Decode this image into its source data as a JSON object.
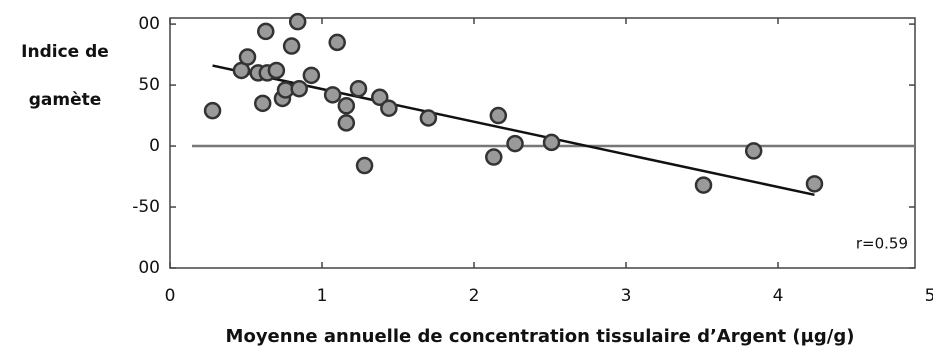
{
  "chart_data": {
    "type": "scatter",
    "ylabel": [
      "Indice de",
      "gamète"
    ],
    "xlabel": "Moyenne annuelle de concentration tissulaire d’Argent (µg/g)",
    "annotation": "r=0.59",
    "x": [
      0.28,
      0.47,
      0.51,
      0.58,
      0.63,
      0.61,
      0.64,
      0.7,
      0.74,
      0.76,
      0.8,
      0.84,
      0.85,
      0.93,
      1.07,
      1.1,
      1.16,
      1.16,
      1.24,
      1.28,
      1.38,
      1.44,
      1.7,
      2.13,
      2.16,
      2.27,
      2.51,
      3.51,
      3.84,
      4.24
    ],
    "series": [
      {
        "color": "#9a9a9a",
        "values": [
          29,
          62,
          73,
          60,
          94,
          35,
          60,
          62,
          39,
          46,
          82,
          102,
          47,
          58,
          42,
          85,
          33,
          19,
          47,
          -16,
          40,
          31,
          23,
          -9,
          25,
          2,
          3,
          -32,
          -4,
          -31
        ]
      }
    ],
    "trendline": {
      "x": [
        0.28,
        4.24
      ],
      "y": [
        66,
        -40
      ],
      "color": "#111111"
    },
    "xlim": [
      0,
      5
    ],
    "ylim": [
      -100,
      105
    ],
    "xticks": [
      0,
      1,
      2,
      3,
      4,
      5
    ],
    "yticks": [
      {
        "value": 100,
        "label": "00"
      },
      50,
      0,
      -50,
      {
        "value": -100,
        "label": "00"
      }
    ],
    "zero_line": true
  }
}
